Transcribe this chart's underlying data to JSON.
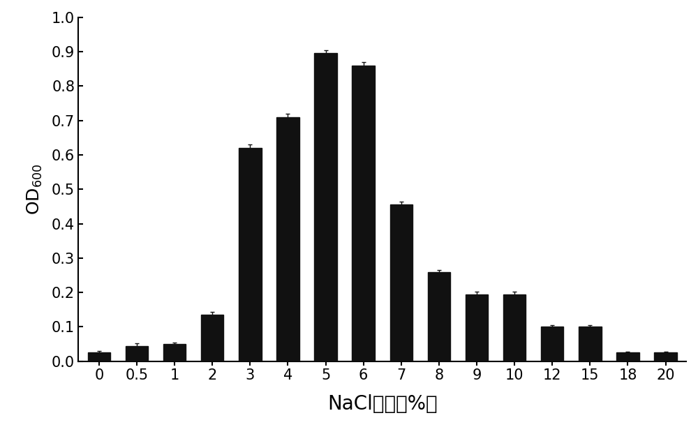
{
  "categories": [
    "0",
    "0.5",
    "1",
    "2",
    "3",
    "4",
    "5",
    "6",
    "7",
    "8",
    "9",
    "10",
    "12",
    "15",
    "18",
    "20"
  ],
  "values": [
    0.025,
    0.045,
    0.05,
    0.135,
    0.62,
    0.71,
    0.895,
    0.86,
    0.455,
    0.26,
    0.195,
    0.195,
    0.1,
    0.1,
    0.025,
    0.025
  ],
  "errors": [
    0.005,
    0.008,
    0.005,
    0.008,
    0.01,
    0.01,
    0.01,
    0.01,
    0.008,
    0.005,
    0.008,
    0.008,
    0.005,
    0.005,
    0.003,
    0.003
  ],
  "bar_color": "#111111",
  "error_color": "#111111",
  "xlabel": "NaCl浓度（%）",
  "ylabel": "OD$_{600}$",
  "ylim": [
    0.0,
    1.0
  ],
  "yticks": [
    0.0,
    0.1,
    0.2,
    0.3,
    0.4,
    0.5,
    0.6,
    0.7,
    0.8,
    0.9,
    1.0
  ],
  "background_color": "#ffffff",
  "bar_width": 0.6,
  "xlabel_fontsize": 20,
  "ylabel_fontsize": 18,
  "tick_fontsize": 15
}
